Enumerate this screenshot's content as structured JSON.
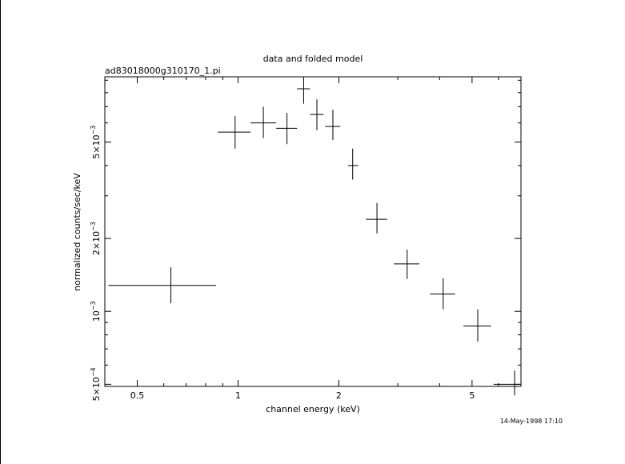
{
  "chart_data": {
    "type": "scatter",
    "title": "data and folded model",
    "subtitle": "ad83018000g310170_1.pi",
    "xlabel": "channel energy (keV)",
    "ylabel": "normalized counts/sec/keV",
    "x_scale": "log",
    "y_scale": "log",
    "xlim": [
      0.4,
      7.0
    ],
    "ylim": [
      0.00049,
      0.0093
    ],
    "grid": false,
    "x_ticks": [
      {
        "value": 0.5,
        "label": "0.5"
      },
      {
        "value": 1,
        "label": "1"
      },
      {
        "value": 2,
        "label": "2"
      },
      {
        "value": 5,
        "label": "5"
      }
    ],
    "y_ticks": [
      {
        "value": 0.0005,
        "mantissa": "5×10",
        "exp": "−4"
      },
      {
        "value": 0.001,
        "mantissa": "10",
        "exp": "−3"
      },
      {
        "value": 0.002,
        "mantissa": "2×10",
        "exp": "−3"
      },
      {
        "value": 0.005,
        "mantissa": "5×10",
        "exp": "−3"
      }
    ],
    "series": [
      {
        "marker": "error-cross",
        "points": [
          {
            "x": 0.63,
            "x_lo": 0.41,
            "x_hi": 0.86,
            "y": 0.00128,
            "y_lo": 0.00108,
            "y_hi": 0.00152
          },
          {
            "x": 0.98,
            "x_lo": 0.87,
            "x_hi": 1.09,
            "y": 0.0055,
            "y_lo": 0.0047,
            "y_hi": 0.0064
          },
          {
            "x": 1.19,
            "x_lo": 1.09,
            "x_hi": 1.3,
            "y": 0.006,
            "y_lo": 0.0052,
            "y_hi": 0.007
          },
          {
            "x": 1.4,
            "x_lo": 1.3,
            "x_hi": 1.5,
            "y": 0.0057,
            "y_lo": 0.0049,
            "y_hi": 0.0066
          },
          {
            "x": 1.57,
            "x_lo": 1.5,
            "x_hi": 1.64,
            "y": 0.0083,
            "y_lo": 0.0072,
            "y_hi": 0.0093
          },
          {
            "x": 1.72,
            "x_lo": 1.64,
            "x_hi": 1.8,
            "y": 0.0065,
            "y_lo": 0.0056,
            "y_hi": 0.0075
          },
          {
            "x": 1.92,
            "x_lo": 1.82,
            "x_hi": 2.02,
            "y": 0.0058,
            "y_lo": 0.0051,
            "y_hi": 0.0068
          },
          {
            "x": 2.2,
            "x_lo": 2.13,
            "x_hi": 2.28,
            "y": 0.004,
            "y_lo": 0.0035,
            "y_hi": 0.0047
          },
          {
            "x": 2.6,
            "x_lo": 2.41,
            "x_hi": 2.79,
            "y": 0.0024,
            "y_lo": 0.0021,
            "y_hi": 0.0028
          },
          {
            "x": 3.2,
            "x_lo": 2.92,
            "x_hi": 3.48,
            "y": 0.00157,
            "y_lo": 0.00136,
            "y_hi": 0.0018
          },
          {
            "x": 4.1,
            "x_lo": 3.75,
            "x_hi": 4.45,
            "y": 0.00118,
            "y_lo": 0.00102,
            "y_hi": 0.00137
          },
          {
            "x": 5.2,
            "x_lo": 4.71,
            "x_hi": 5.7,
            "y": 0.00087,
            "y_lo": 0.00075,
            "y_hi": 0.00102
          },
          {
            "x": 6.7,
            "x_lo": 5.8,
            "x_hi": 7.0,
            "y": 0.0005,
            "y_lo": 0.00045,
            "y_hi": 0.00057
          }
        ]
      }
    ]
  },
  "footer": {
    "timestamp": "14-May-1998 17:10"
  }
}
